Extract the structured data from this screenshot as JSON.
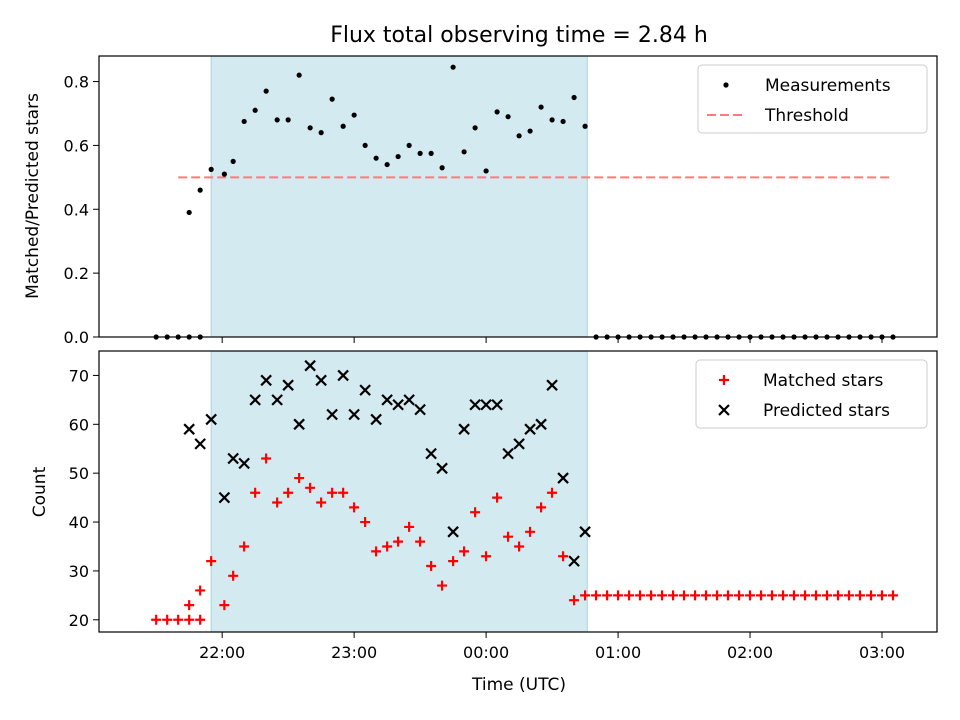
{
  "colors": {
    "measurements": "#000000",
    "threshold": "#ff7a7a",
    "matched": "#ff0000",
    "predicted": "#000000",
    "observing_window": "#d3eaf0"
  },
  "chart_data": [
    {
      "type": "scatter",
      "title": "Flux total observing time = 2.84 h",
      "xlabel": "",
      "ylabel": "Matched/Predicted stars",
      "xlim": [
        "21:04",
        "03:25"
      ],
      "ylim": [
        0,
        0.88
      ],
      "yticks": [
        0.0,
        0.2,
        0.4,
        0.6,
        0.8
      ],
      "ytick_labels": [
        "0.0",
        "0.2",
        "0.4",
        "0.6",
        "0.8"
      ],
      "xticks": [
        "22:00",
        "23:00",
        "00:00",
        "01:00",
        "02:00",
        "03:00"
      ],
      "shaded_interval": [
        "21:55",
        "00:46"
      ],
      "legend": {
        "placement": "top-right",
        "entries": [
          "Measurements",
          "Threshold"
        ]
      },
      "threshold": {
        "name": "Threshold",
        "value": 0.5,
        "x_range": [
          "21:40",
          "03:05"
        ]
      },
      "series": [
        {
          "name": "Measurements",
          "marker": "dot",
          "points": [
            [
              "21:30",
              0.0
            ],
            [
              "21:35",
              0.0
            ],
            [
              "21:40",
              0.0
            ],
            [
              "21:45",
              0.0
            ],
            [
              "21:50",
              0.0
            ],
            [
              "21:45",
              0.39
            ],
            [
              "21:50",
              0.46
            ],
            [
              "21:55",
              0.525
            ],
            [
              "22:01",
              0.51
            ],
            [
              "22:05",
              0.55
            ],
            [
              "22:10",
              0.675
            ],
            [
              "22:15",
              0.71
            ],
            [
              "22:20",
              0.77
            ],
            [
              "22:25",
              0.68
            ],
            [
              "22:30",
              0.68
            ],
            [
              "22:35",
              0.82
            ],
            [
              "22:40",
              0.655
            ],
            [
              "22:45",
              0.64
            ],
            [
              "22:50",
              0.745
            ],
            [
              "22:55",
              0.66
            ],
            [
              "23:00",
              0.695
            ],
            [
              "23:05",
              0.6
            ],
            [
              "23:10",
              0.56
            ],
            [
              "23:15",
              0.54
            ],
            [
              "23:20",
              0.565
            ],
            [
              "23:25",
              0.6
            ],
            [
              "23:30",
              0.575
            ],
            [
              "23:35",
              0.575
            ],
            [
              "23:40",
              0.53
            ],
            [
              "23:45",
              0.845
            ],
            [
              "23:50",
              0.58
            ],
            [
              "23:55",
              0.655
            ],
            [
              "00:00",
              0.52
            ],
            [
              "00:05",
              0.705
            ],
            [
              "00:10",
              0.69
            ],
            [
              "00:15",
              0.63
            ],
            [
              "00:20",
              0.645
            ],
            [
              "00:25",
              0.72
            ],
            [
              "00:30",
              0.68
            ],
            [
              "00:35",
              0.675
            ],
            [
              "00:40",
              0.75
            ],
            [
              "00:45",
              0.66
            ],
            [
              "00:50",
              0.0
            ],
            [
              "00:55",
              0.0
            ],
            [
              "01:00",
              0.0
            ],
            [
              "01:05",
              0.0
            ],
            [
              "01:10",
              0.0
            ],
            [
              "01:15",
              0.0
            ],
            [
              "01:20",
              0.0
            ],
            [
              "01:25",
              0.0
            ],
            [
              "01:30",
              0.0
            ],
            [
              "01:35",
              0.0
            ],
            [
              "01:40",
              0.0
            ],
            [
              "01:45",
              0.0
            ],
            [
              "01:50",
              0.0
            ],
            [
              "01:55",
              0.0
            ],
            [
              "02:00",
              0.0
            ],
            [
              "02:05",
              0.0
            ],
            [
              "02:10",
              0.0
            ],
            [
              "02:15",
              0.0
            ],
            [
              "02:20",
              0.0
            ],
            [
              "02:25",
              0.0
            ],
            [
              "02:30",
              0.0
            ],
            [
              "02:35",
              0.0
            ],
            [
              "02:40",
              0.0
            ],
            [
              "02:45",
              0.0
            ],
            [
              "02:50",
              0.0
            ],
            [
              "02:55",
              0.0
            ],
            [
              "03:00",
              0.0
            ],
            [
              "03:05",
              0.0
            ]
          ]
        }
      ]
    },
    {
      "type": "scatter",
      "title": "",
      "xlabel": "Time (UTC)",
      "ylabel": "Count",
      "xlim": [
        "21:04",
        "03:25"
      ],
      "ylim": [
        17.5,
        75
      ],
      "yticks": [
        20,
        30,
        40,
        50,
        60,
        70
      ],
      "ytick_labels": [
        "20",
        "30",
        "40",
        "50",
        "60",
        "70"
      ],
      "xticks": [
        "22:00",
        "23:00",
        "00:00",
        "01:00",
        "02:00",
        "03:00"
      ],
      "xtick_labels": [
        "22:00",
        "23:00",
        "00:00",
        "01:00",
        "02:00",
        "03:00"
      ],
      "shaded_interval": [
        "21:55",
        "00:46"
      ],
      "legend": {
        "placement": "top-right",
        "entries": [
          "Matched stars",
          "Predicted stars"
        ]
      },
      "series": [
        {
          "name": "Matched stars",
          "marker": "plus",
          "points": [
            [
              "21:30",
              20
            ],
            [
              "21:35",
              20
            ],
            [
              "21:40",
              20
            ],
            [
              "21:45",
              20
            ],
            [
              "21:50",
              20
            ],
            [
              "21:45",
              23
            ],
            [
              "21:50",
              26
            ],
            [
              "21:55",
              32
            ],
            [
              "22:01",
              23
            ],
            [
              "22:05",
              29
            ],
            [
              "22:10",
              35
            ],
            [
              "22:15",
              46
            ],
            [
              "22:20",
              53
            ],
            [
              "22:25",
              44
            ],
            [
              "22:30",
              46
            ],
            [
              "22:35",
              49
            ],
            [
              "22:40",
              47
            ],
            [
              "22:45",
              44
            ],
            [
              "22:50",
              46
            ],
            [
              "22:55",
              46
            ],
            [
              "23:00",
              43
            ],
            [
              "23:05",
              40
            ],
            [
              "23:10",
              34
            ],
            [
              "23:15",
              35
            ],
            [
              "23:20",
              36
            ],
            [
              "23:25",
              39
            ],
            [
              "23:30",
              36
            ],
            [
              "23:35",
              31
            ],
            [
              "23:40",
              27
            ],
            [
              "23:45",
              32
            ],
            [
              "23:50",
              34
            ],
            [
              "23:55",
              42
            ],
            [
              "00:00",
              33
            ],
            [
              "00:05",
              45
            ],
            [
              "00:10",
              37
            ],
            [
              "00:15",
              35
            ],
            [
              "00:20",
              38
            ],
            [
              "00:25",
              43
            ],
            [
              "00:30",
              46
            ],
            [
              "00:35",
              33
            ],
            [
              "00:40",
              24
            ],
            [
              "00:45",
              25
            ],
            [
              "00:50",
              25
            ],
            [
              "00:55",
              25
            ],
            [
              "01:00",
              25
            ],
            [
              "01:05",
              25
            ],
            [
              "01:10",
              25
            ],
            [
              "01:15",
              25
            ],
            [
              "01:20",
              25
            ],
            [
              "01:25",
              25
            ],
            [
              "01:30",
              25
            ],
            [
              "01:35",
              25
            ],
            [
              "01:40",
              25
            ],
            [
              "01:45",
              25
            ],
            [
              "01:50",
              25
            ],
            [
              "01:55",
              25
            ],
            [
              "02:00",
              25
            ],
            [
              "02:05",
              25
            ],
            [
              "02:10",
              25
            ],
            [
              "02:15",
              25
            ],
            [
              "02:20",
              25
            ],
            [
              "02:25",
              25
            ],
            [
              "02:30",
              25
            ],
            [
              "02:35",
              25
            ],
            [
              "02:40",
              25
            ],
            [
              "02:45",
              25
            ],
            [
              "02:50",
              25
            ],
            [
              "02:55",
              25
            ],
            [
              "03:00",
              25
            ],
            [
              "03:05",
              25
            ]
          ]
        },
        {
          "name": "Predicted stars",
          "marker": "x",
          "points": [
            [
              "21:45",
              59
            ],
            [
              "21:50",
              56
            ],
            [
              "21:55",
              61
            ],
            [
              "22:01",
              45
            ],
            [
              "22:05",
              53
            ],
            [
              "22:10",
              52
            ],
            [
              "22:15",
              65
            ],
            [
              "22:20",
              69
            ],
            [
              "22:25",
              65
            ],
            [
              "22:30",
              68
            ],
            [
              "22:35",
              60
            ],
            [
              "22:40",
              72
            ],
            [
              "22:45",
              69
            ],
            [
              "22:50",
              62
            ],
            [
              "22:55",
              70
            ],
            [
              "23:00",
              62
            ],
            [
              "23:05",
              67
            ],
            [
              "23:10",
              61
            ],
            [
              "23:15",
              65
            ],
            [
              "23:20",
              64
            ],
            [
              "23:25",
              65
            ],
            [
              "23:30",
              63
            ],
            [
              "23:35",
              54
            ],
            [
              "23:40",
              51
            ],
            [
              "23:45",
              38
            ],
            [
              "23:50",
              59
            ],
            [
              "23:55",
              64
            ],
            [
              "00:00",
              64
            ],
            [
              "00:05",
              64
            ],
            [
              "00:10",
              54
            ],
            [
              "00:15",
              56
            ],
            [
              "00:20",
              59
            ],
            [
              "00:25",
              60
            ],
            [
              "00:30",
              68
            ],
            [
              "00:35",
              49
            ],
            [
              "00:40",
              32
            ],
            [
              "00:45",
              38
            ]
          ]
        }
      ]
    }
  ]
}
